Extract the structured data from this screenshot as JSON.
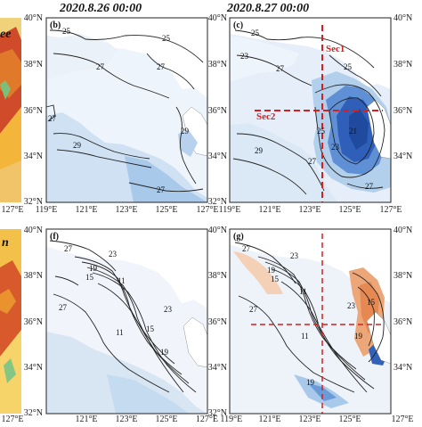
{
  "headers": {
    "date1": "2020.8.26 00:00",
    "date2": "2020.8.27 00:00"
  },
  "left_partial_labels": {
    "top": "ee",
    "bottom": "n"
  },
  "panels": {
    "b": {
      "label": "(b)",
      "contours": [
        "25",
        "25",
        "27",
        "27",
        "29",
        "29",
        "27",
        "27"
      ]
    },
    "c": {
      "label": "(c)",
      "contours": [
        "25",
        "23",
        "25",
        "27",
        "21",
        "23",
        "25",
        "27",
        "29",
        "27"
      ]
    },
    "f": {
      "label": "(f)",
      "contours": [
        "27",
        "23",
        "19",
        "15",
        "11",
        "11",
        "15",
        "19",
        "23",
        "27"
      ]
    },
    "g": {
      "label": "(g)",
      "contours": [
        "27",
        "23",
        "19",
        "15",
        "11",
        "11",
        "19",
        "23",
        "27",
        "15",
        "19"
      ]
    }
  },
  "sections": {
    "sec1": "Sec1",
    "sec2": "Sec2"
  },
  "axes": {
    "lat_ticks": [
      "40°N",
      "38°N",
      "36°N",
      "34°N",
      "32°N"
    ],
    "lon_ticks": [
      "121°E",
      "123°E",
      "125°E",
      "127°E"
    ],
    "left_partial_tick": "127°E",
    "mid_lon_pair": "127°E 119°E",
    "lon_labels_rendered": [
      "119°E",
      "121°E",
      "123°E",
      "125°E",
      "127°E"
    ]
  },
  "colors": {
    "land": "#ffffff",
    "sea_base": "#dfeaf6",
    "sea_light": "#eaf2fa",
    "sea_mid": "#b7d3ee",
    "sea_blue": "#5b8fd6",
    "sea_deep": "#1f4fa8",
    "warm_light": "#f6dcc4",
    "warm": "#e99a66",
    "red_section": "#d42020",
    "yellow_sand": "#f2e6c8"
  }
}
